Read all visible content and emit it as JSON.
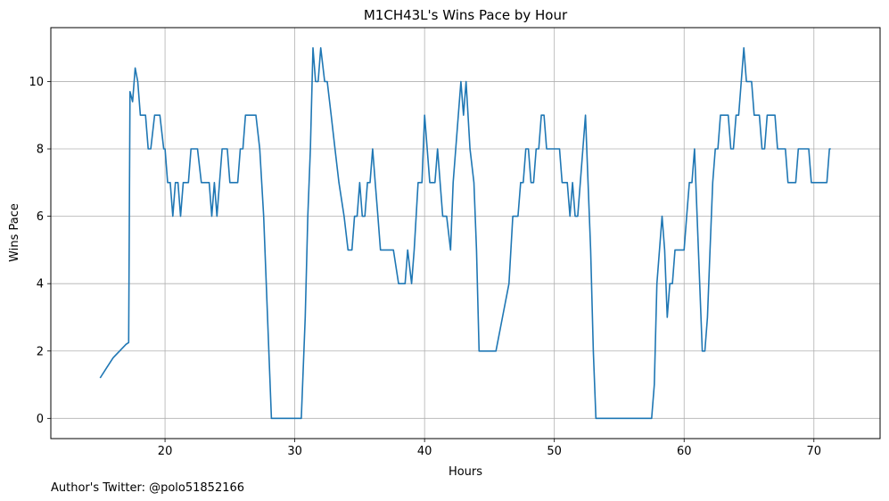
{
  "chart_data": {
    "type": "line",
    "title": "M1CH43L's Wins Pace by Hour",
    "xlabel": "Hours",
    "ylabel": "Wins Pace",
    "xlim": [
      11.2,
      75.1
    ],
    "ylim": [
      -0.6,
      11.6
    ],
    "xticks": [
      20,
      30,
      40,
      50,
      60,
      70
    ],
    "yticks": [
      0,
      2,
      4,
      6,
      8,
      10
    ],
    "grid": true,
    "line_color": "#1f77b4",
    "series": [
      {
        "x": [
          15.0,
          15.5,
          16.0,
          16.5,
          17.0,
          17.2,
          17.3,
          17.5,
          17.7,
          17.9,
          18.1,
          18.3,
          18.5,
          18.7,
          18.9,
          19.2,
          19.4,
          19.6,
          19.9,
          20.0,
          20.2,
          20.4,
          20.6,
          20.8,
          21.0,
          21.2,
          21.4,
          21.6,
          21.8,
          22.0,
          22.3,
          22.5,
          22.8,
          23.0,
          23.2,
          23.4,
          23.6,
          23.8,
          24.0,
          24.2,
          24.4,
          24.6,
          24.8,
          25.0,
          25.2,
          25.4,
          25.6,
          25.8,
          26.0,
          26.2,
          26.4,
          26.7,
          26.9,
          27.0,
          27.3,
          27.6,
          27.8,
          28.0,
          28.2,
          28.4,
          28.6,
          28.8,
          29.0,
          29.2,
          30.0,
          30.5,
          30.8,
          31.0,
          31.2,
          31.4,
          31.6,
          31.8,
          32.0,
          32.3,
          32.5,
          32.8,
          33.1,
          33.4,
          33.8,
          34.1,
          34.4,
          34.6,
          34.8,
          35.0,
          35.2,
          35.4,
          35.6,
          35.8,
          36.0,
          36.2,
          36.4,
          36.6,
          36.8,
          37.0,
          37.3,
          37.6,
          38.0,
          38.3,
          38.5,
          38.7,
          39.0,
          39.2,
          39.5,
          39.8,
          40.0,
          40.2,
          40.4,
          40.6,
          40.8,
          41.0,
          41.2,
          41.4,
          41.7,
          42.0,
          42.2,
          42.4,
          42.6,
          42.8,
          43.0,
          43.2,
          43.5,
          43.8,
          44.0,
          44.2,
          44.5,
          44.8,
          45.0,
          45.5,
          46.0,
          46.5,
          46.8,
          47.0,
          47.2,
          47.4,
          47.6,
          47.8,
          48.0,
          48.2,
          48.4,
          48.6,
          48.8,
          49.0,
          49.2,
          49.4,
          49.6,
          49.8,
          50.0,
          50.2,
          50.4,
          50.6,
          50.8,
          51.0,
          51.2,
          51.4,
          51.6,
          51.8,
          52.0,
          52.2,
          52.4,
          52.6,
          52.8,
          53.0,
          53.2,
          53.4,
          53.6,
          53.8,
          54.0,
          54.2,
          54.4,
          54.6,
          54.8,
          55.0,
          55.5,
          56.0,
          56.5,
          57.0,
          57.5,
          57.7,
          57.9,
          58.1,
          58.3,
          58.5,
          58.7,
          58.9,
          59.1,
          59.3,
          59.5,
          59.7,
          60.0,
          60.2,
          60.4,
          60.6,
          60.8,
          61.0,
          61.2,
          61.4,
          61.6,
          61.8,
          62.0,
          62.2,
          62.4,
          62.6,
          62.8,
          63.0,
          63.2,
          63.4,
          63.6,
          63.8,
          64.0,
          64.2,
          64.4,
          64.6,
          64.8,
          65.0,
          65.2,
          65.4,
          65.6,
          65.8,
          66.0,
          66.2,
          66.4,
          66.6,
          66.8,
          67.0,
          67.2,
          67.4,
          67.6,
          67.8,
          68.0,
          68.2,
          68.4,
          68.6,
          68.8,
          69.0,
          69.2,
          69.4,
          69.6,
          69.8,
          70.0,
          70.2,
          70.4,
          70.6,
          70.8,
          71.0,
          71.2,
          71.3
        ],
        "y": [
          1.2,
          1.5,
          1.8,
          2.0,
          2.2,
          2.25,
          9.7,
          9.4,
          10.4,
          10.0,
          9.0,
          9.0,
          9.0,
          8.0,
          8.0,
          9.0,
          9.0,
          9.0,
          8.0,
          8.0,
          7.0,
          7.0,
          6.0,
          7.0,
          7.0,
          6.0,
          7.0,
          7.0,
          7.0,
          8.0,
          8.0,
          8.0,
          7.0,
          7.0,
          7.0,
          7.0,
          6.0,
          7.0,
          6.0,
          7.0,
          8.0,
          8.0,
          8.0,
          7.0,
          7.0,
          7.0,
          7.0,
          8.0,
          8.0,
          9.0,
          9.0,
          9.0,
          9.0,
          9.0,
          8.0,
          6.0,
          4.0,
          2.0,
          0.0,
          0.0,
          0.0,
          0.0,
          0.0,
          0.0,
          0.0,
          0.0,
          3.0,
          6.0,
          8.0,
          11.0,
          10.0,
          10.0,
          11.0,
          10.0,
          10.0,
          9.0,
          8.0,
          7.0,
          6.0,
          5.0,
          5.0,
          6.0,
          6.0,
          7.0,
          6.0,
          6.0,
          7.0,
          7.0,
          8.0,
          7.0,
          6.0,
          5.0,
          5.0,
          5.0,
          5.0,
          5.0,
          4.0,
          4.0,
          4.0,
          5.0,
          4.0,
          5.0,
          7.0,
          7.0,
          9.0,
          8.0,
          7.0,
          7.0,
          7.0,
          8.0,
          7.0,
          6.0,
          6.0,
          5.0,
          7.0,
          8.0,
          9.0,
          10.0,
          9.0,
          10.0,
          8.0,
          7.0,
          5.0,
          2.0,
          2.0,
          2.0,
          2.0,
          2.0,
          3.0,
          4.0,
          6.0,
          6.0,
          6.0,
          7.0,
          7.0,
          8.0,
          8.0,
          7.0,
          7.0,
          8.0,
          8.0,
          9.0,
          9.0,
          8.0,
          8.0,
          8.0,
          8.0,
          8.0,
          8.0,
          7.0,
          7.0,
          7.0,
          6.0,
          7.0,
          6.0,
          6.0,
          7.0,
          8.0,
          9.0,
          7.0,
          5.0,
          2.0,
          0.0,
          0.0,
          0.0,
          0.0,
          0.0,
          0.0,
          0.0,
          0.0,
          0.0,
          0.0,
          0.0,
          0.0,
          0.0,
          0.0,
          0.0,
          1.0,
          4.0,
          5.0,
          6.0,
          5.0,
          3.0,
          4.0,
          4.0,
          5.0,
          5.0,
          5.0,
          5.0,
          6.0,
          7.0,
          7.0,
          8.0,
          6.0,
          4.0,
          2.0,
          2.0,
          3.0,
          5.0,
          7.0,
          8.0,
          8.0,
          9.0,
          9.0,
          9.0,
          9.0,
          8.0,
          8.0,
          9.0,
          9.0,
          10.0,
          11.0,
          10.0,
          10.0,
          10.0,
          9.0,
          9.0,
          9.0,
          8.0,
          8.0,
          9.0,
          9.0,
          9.0,
          9.0,
          8.0,
          8.0,
          8.0,
          8.0,
          7.0,
          7.0,
          7.0,
          7.0,
          8.0,
          8.0,
          8.0,
          8.0,
          8.0,
          7.0,
          7.0,
          7.0,
          7.0,
          7.0,
          7.0,
          7.0,
          8.0,
          8.0
        ]
      }
    ],
    "footnote": "Author's Twitter: @polo51852166"
  }
}
